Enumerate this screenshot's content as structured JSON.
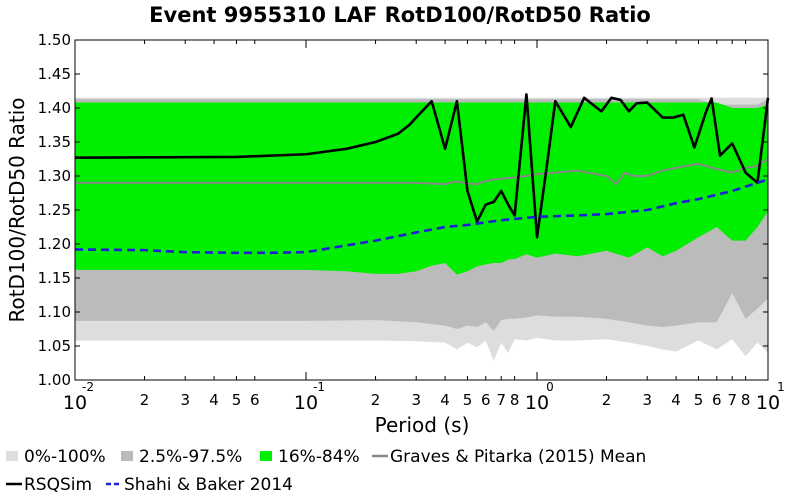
{
  "chart_data": {
    "type": "area",
    "title": "Event 9955310 LAF RotD100/RotD50 Ratio",
    "xlabel": "Period (s)",
    "ylabel": "RotD100/RotD50 Ratio",
    "xscale": "log",
    "xlim": [
      0.01,
      10
    ],
    "ylim": [
      1.0,
      1.5
    ],
    "yticks": [
      "1.00",
      "1.05",
      "1.10",
      "1.15",
      "1.20",
      "1.25",
      "1.30",
      "1.35",
      "1.40",
      "1.45",
      "1.50"
    ],
    "xticks_major": [
      {
        "base": "10",
        "exp": "-2"
      },
      {
        "base": "10",
        "exp": "-1"
      },
      {
        "base": "10",
        "exp": "0"
      },
      {
        "base": "10",
        "exp": "1"
      }
    ],
    "xticks_minor": [
      {
        "x": 0.02,
        "label": "2"
      },
      {
        "x": 0.03,
        "label": "3"
      },
      {
        "x": 0.04,
        "label": "4"
      },
      {
        "x": 0.05,
        "label": "5"
      },
      {
        "x": 0.06,
        "label": "6"
      },
      {
        "x": 0.2,
        "label": "2"
      },
      {
        "x": 0.3,
        "label": "3"
      },
      {
        "x": 0.4,
        "label": "4"
      },
      {
        "x": 0.5,
        "label": "5"
      },
      {
        "x": 0.6,
        "label": "6"
      },
      {
        "x": 0.7,
        "label": "7"
      },
      {
        "x": 0.8,
        "label": "8"
      },
      {
        "x": 2,
        "label": "2"
      },
      {
        "x": 3,
        "label": "3"
      },
      {
        "x": 4,
        "label": "4"
      },
      {
        "x": 5,
        "label": "5"
      },
      {
        "x": 6,
        "label": "6"
      },
      {
        "x": 7,
        "label": "7"
      },
      {
        "x": 8,
        "label": "8"
      }
    ],
    "grid": false,
    "legend_position": "bottom",
    "colors": {
      "band_0_100": "#dddddd",
      "band_2_5_97_5": "#bbbbbb",
      "band_16_84": "#00ee00",
      "graves_pitarka": "#888888",
      "rsqsim": "#000000",
      "shahi_baker": "#1f1fd6"
    },
    "legend": [
      {
        "label": "0%-100%",
        "kind": "patch",
        "color": "#dddddd"
      },
      {
        "label": "2.5%-97.5%",
        "kind": "patch",
        "color": "#bbbbbb"
      },
      {
        "label": "16%-84%",
        "kind": "patch",
        "color": "#00ee00"
      },
      {
        "label": "Graves & Pitarka (2015) Mean",
        "kind": "line",
        "color": "#888888",
        "dash": "solid"
      },
      {
        "label": "RSQSim",
        "kind": "line",
        "color": "#000000",
        "dash": "solid"
      },
      {
        "label": "Shahi & Baker 2014",
        "kind": "line",
        "color": "#1f1fd6",
        "dash": "dashed"
      }
    ],
    "bands": [
      {
        "name": "0%-100%",
        "x": [
          0.01,
          0.05,
          0.1,
          0.2,
          0.3,
          0.4,
          0.45,
          0.5,
          0.55,
          0.6,
          0.65,
          0.7,
          0.75,
          0.8,
          0.9,
          1.0,
          1.2,
          1.5,
          2.0,
          2.5,
          3.0,
          3.5,
          4.0,
          5.0,
          6.0,
          7.0,
          8.0,
          9.0,
          10.0
        ],
        "upper": [
          1.415,
          1.415,
          1.415,
          1.415,
          1.415,
          1.415,
          1.415,
          1.415,
          1.415,
          1.415,
          1.415,
          1.415,
          1.415,
          1.415,
          1.415,
          1.415,
          1.415,
          1.415,
          1.415,
          1.415,
          1.415,
          1.415,
          1.415,
          1.415,
          1.415,
          1.415,
          1.415,
          1.415,
          1.415
        ],
        "lower": [
          1.058,
          1.058,
          1.058,
          1.058,
          1.057,
          1.055,
          1.045,
          1.055,
          1.048,
          1.058,
          1.028,
          1.055,
          1.04,
          1.06,
          1.058,
          1.062,
          1.058,
          1.058,
          1.06,
          1.055,
          1.05,
          1.045,
          1.042,
          1.058,
          1.045,
          1.06,
          1.035,
          1.055,
          1.04
        ]
      },
      {
        "name": "2.5%-97.5%",
        "x": [
          0.01,
          0.05,
          0.1,
          0.2,
          0.3,
          0.4,
          0.45,
          0.5,
          0.55,
          0.6,
          0.65,
          0.7,
          0.75,
          0.8,
          0.9,
          1.0,
          1.2,
          1.5,
          2.0,
          2.5,
          3.0,
          3.5,
          4.0,
          5.0,
          6.0,
          7.0,
          8.0,
          9.0,
          10.0
        ],
        "upper": [
          1.413,
          1.413,
          1.413,
          1.413,
          1.413,
          1.413,
          1.413,
          1.413,
          1.413,
          1.413,
          1.413,
          1.413,
          1.413,
          1.413,
          1.413,
          1.413,
          1.413,
          1.413,
          1.413,
          1.413,
          1.413,
          1.413,
          1.413,
          1.413,
          1.405,
          1.405,
          1.405,
          1.405,
          1.413
        ],
        "lower": [
          1.087,
          1.087,
          1.087,
          1.088,
          1.085,
          1.08,
          1.075,
          1.08,
          1.078,
          1.085,
          1.072,
          1.088,
          1.09,
          1.09,
          1.092,
          1.095,
          1.093,
          1.093,
          1.09,
          1.085,
          1.08,
          1.078,
          1.08,
          1.085,
          1.085,
          1.128,
          1.09,
          1.105,
          1.12
        ]
      },
      {
        "name": "16%-84%",
        "x": [
          0.01,
          0.05,
          0.1,
          0.15,
          0.2,
          0.25,
          0.3,
          0.35,
          0.4,
          0.45,
          0.5,
          0.55,
          0.6,
          0.65,
          0.7,
          0.75,
          0.8,
          0.9,
          1.0,
          1.2,
          1.5,
          2.0,
          2.5,
          3.0,
          3.5,
          4.0,
          5.0,
          6.0,
          7.0,
          8.0,
          9.0,
          10.0
        ],
        "upper": [
          1.408,
          1.408,
          1.408,
          1.408,
          1.408,
          1.408,
          1.408,
          1.408,
          1.408,
          1.408,
          1.408,
          1.408,
          1.408,
          1.408,
          1.408,
          1.408,
          1.408,
          1.408,
          1.408,
          1.408,
          1.408,
          1.408,
          1.408,
          1.408,
          1.408,
          1.408,
          1.408,
          1.408,
          1.4,
          1.4,
          1.4,
          1.405
        ],
        "lower": [
          1.162,
          1.162,
          1.162,
          1.16,
          1.156,
          1.156,
          1.16,
          1.168,
          1.172,
          1.155,
          1.16,
          1.167,
          1.17,
          1.172,
          1.172,
          1.177,
          1.178,
          1.185,
          1.18,
          1.186,
          1.182,
          1.19,
          1.18,
          1.195,
          1.182,
          1.19,
          1.21,
          1.225,
          1.205,
          1.205,
          1.225,
          1.248
        ]
      }
    ],
    "series": [
      {
        "name": "Graves & Pitarka (2015) Mean",
        "style": "solid",
        "x": [
          0.01,
          0.1,
          0.3,
          0.4,
          0.45,
          0.5,
          0.55,
          0.6,
          0.7,
          0.8,
          0.9,
          1.0,
          1.2,
          1.5,
          2.0,
          2.2,
          2.4,
          2.6,
          3.0,
          3.5,
          4.0,
          5.0,
          6.0,
          7.0,
          8.0,
          9.0,
          10.0
        ],
        "values": [
          1.29,
          1.29,
          1.29,
          1.288,
          1.292,
          1.289,
          1.288,
          1.293,
          1.296,
          1.298,
          1.3,
          1.303,
          1.305,
          1.308,
          1.3,
          1.288,
          1.305,
          1.3,
          1.3,
          1.308,
          1.312,
          1.318,
          1.31,
          1.305,
          1.312,
          1.315,
          1.325
        ]
      },
      {
        "name": "RSQSim",
        "style": "solid",
        "x": [
          0.01,
          0.05,
          0.1,
          0.15,
          0.2,
          0.25,
          0.28,
          0.3,
          0.35,
          0.4,
          0.45,
          0.5,
          0.55,
          0.6,
          0.65,
          0.7,
          0.75,
          0.8,
          0.9,
          1.0,
          1.1,
          1.2,
          1.4,
          1.6,
          1.9,
          2.1,
          2.3,
          2.5,
          2.7,
          3.0,
          3.5,
          3.9,
          4.3,
          4.8,
          5.4,
          5.7,
          6.2,
          7.0,
          8.0,
          9.0,
          10.0
        ],
        "values": [
          1.327,
          1.328,
          1.332,
          1.34,
          1.35,
          1.362,
          1.375,
          1.386,
          1.41,
          1.34,
          1.41,
          1.278,
          1.233,
          1.258,
          1.262,
          1.278,
          1.258,
          1.242,
          1.42,
          1.21,
          1.312,
          1.41,
          1.372,
          1.415,
          1.395,
          1.415,
          1.412,
          1.395,
          1.407,
          1.408,
          1.386,
          1.386,
          1.39,
          1.342,
          1.395,
          1.414,
          1.33,
          1.348,
          1.305,
          1.29,
          1.415
        ]
      },
      {
        "name": "Shahi & Baker 2014",
        "style": "dashed",
        "x": [
          0.01,
          0.02,
          0.03,
          0.05,
          0.07,
          0.1,
          0.15,
          0.2,
          0.3,
          0.4,
          0.5,
          0.7,
          1.0,
          1.5,
          2.0,
          3.0,
          4.0,
          5.0,
          7.0,
          10.0
        ],
        "values": [
          1.192,
          1.191,
          1.188,
          1.187,
          1.187,
          1.188,
          1.198,
          1.205,
          1.217,
          1.225,
          1.228,
          1.235,
          1.24,
          1.242,
          1.244,
          1.25,
          1.26,
          1.266,
          1.278,
          1.295
        ]
      }
    ]
  }
}
